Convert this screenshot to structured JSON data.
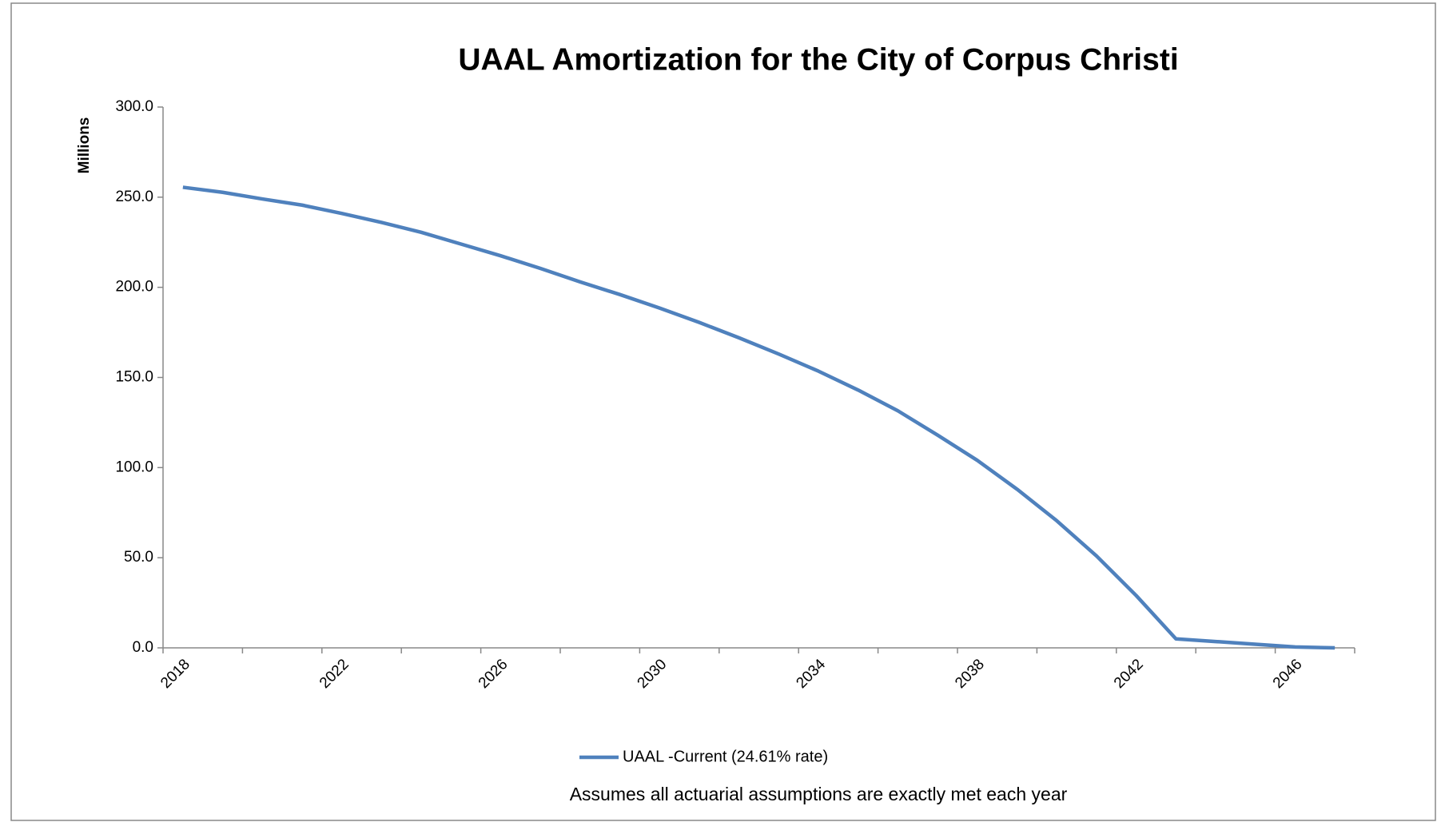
{
  "chart_data": {
    "type": "line",
    "title": "UAAL Amortization for the City of Corpus Christi",
    "y_label": "Millions",
    "note": "Assumes all actuarial assumptions are exactly met each year",
    "categories": [
      "2018",
      null,
      null,
      null,
      "2022",
      null,
      null,
      null,
      "2026",
      null,
      null,
      null,
      "2030",
      null,
      null,
      null,
      "2034",
      null,
      null,
      null,
      "2038",
      null,
      null,
      null,
      "2042",
      null,
      null,
      null,
      "2046",
      null
    ],
    "series": [
      {
        "name": "UAAL -Current (24.61% rate)",
        "color": "#4f81bd",
        "values": [
          255.5,
          252.7,
          249,
          245.6,
          241,
          236,
          230.5,
          224,
          217.5,
          210.5,
          203,
          196,
          188.5,
          180.5,
          172,
          163,
          153.5,
          143,
          131.5,
          118,
          104,
          88,
          70.5,
          51,
          29,
          5,
          3.5,
          2,
          0.5,
          0
        ]
      }
    ],
    "ylim": [
      0,
      300
    ],
    "yticks": [
      {
        "value": 0,
        "label": "0.0"
      },
      {
        "value": 50,
        "label": "50.0"
      },
      {
        "value": 100,
        "label": "100.0"
      },
      {
        "value": 150,
        "label": "150.0"
      },
      {
        "value": 200,
        "label": "200.0"
      },
      {
        "value": 250,
        "label": "250.0"
      },
      {
        "value": 300,
        "label": "300.0"
      }
    ],
    "legend": "bottom"
  }
}
